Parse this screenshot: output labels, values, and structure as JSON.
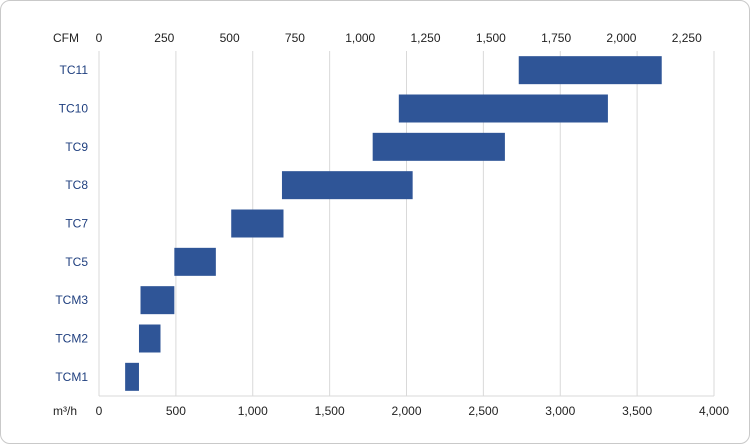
{
  "chart_data": {
    "type": "bar",
    "orientation": "horizontal-range",
    "categories": [
      "TC11",
      "TC10",
      "TC9",
      "TC8",
      "TC7",
      "TC5",
      "TCM3",
      "TCM2",
      "TCM1"
    ],
    "series": [
      {
        "ranges": [
          [
            2730,
            3660
          ],
          [
            1950,
            3310
          ],
          [
            1780,
            2640
          ],
          [
            1190,
            2040
          ],
          [
            860,
            1200
          ],
          [
            490,
            760
          ],
          [
            270,
            490
          ],
          [
            260,
            400
          ],
          [
            170,
            260
          ]
        ]
      }
    ],
    "x_bottom": {
      "unit_label": "m³/h",
      "range": [
        0,
        4000
      ],
      "ticks": [
        0,
        500,
        1000,
        1500,
        2000,
        2500,
        3000,
        3500,
        4000
      ],
      "tick_labels": [
        "0",
        "500",
        "1,000",
        "1,500",
        "2,000",
        "2,500",
        "3,000",
        "3,500",
        "4,000"
      ]
    },
    "x_top": {
      "unit_label": "CFM",
      "ticks": [
        0,
        250,
        500,
        750,
        1000,
        1250,
        1500,
        1750,
        2000,
        2250
      ],
      "tick_labels": [
        "0",
        "250",
        "500",
        "750",
        "1,000",
        "1,250",
        "1,500",
        "1,750",
        "2,000",
        "2,250"
      ]
    },
    "grid": true,
    "bar_color": "#2f5597",
    "grid_color": "#d9d9d9",
    "category_label_color": "#1f3f7f"
  }
}
